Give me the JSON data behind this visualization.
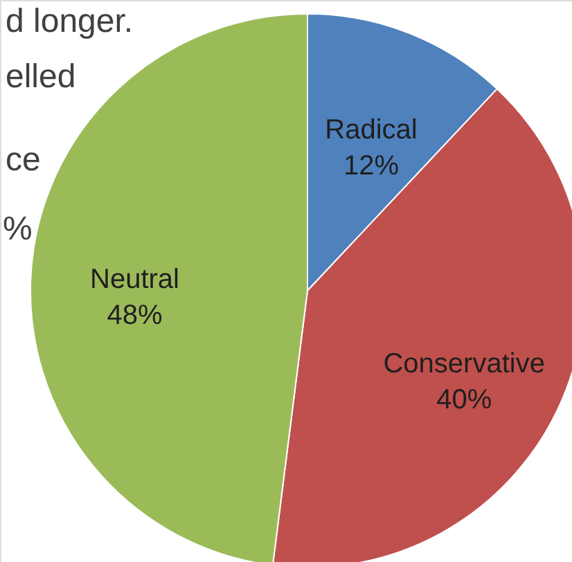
{
  "chart_data": {
    "type": "pie",
    "categories": [
      "Radical",
      "Conservative",
      "Neutral"
    ],
    "values": [
      12,
      40,
      48
    ],
    "value_labels": [
      "12%",
      "40%",
      "48%"
    ],
    "colors": [
      "#4f81bd",
      "#c0504d",
      "#9bbb59"
    ],
    "annotations": [
      "d longer.",
      "elled",
      "ce",
      "%"
    ]
  }
}
